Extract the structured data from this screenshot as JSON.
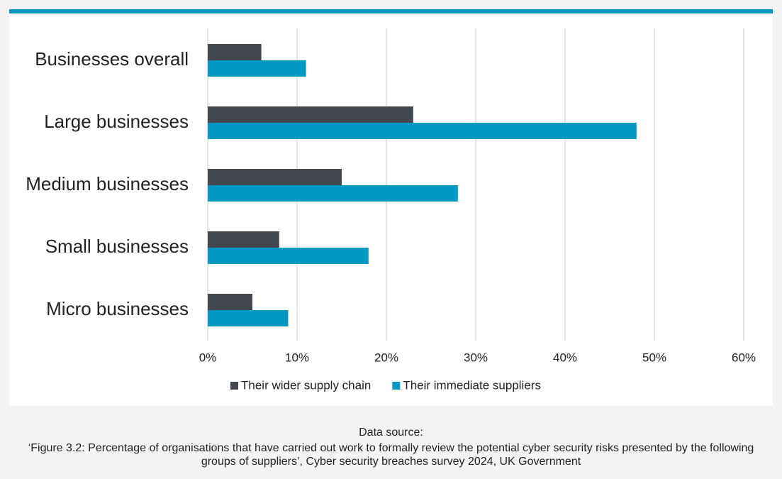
{
  "chart_data": {
    "type": "hbar",
    "categories": [
      "Businesses overall",
      "Large businesses",
      "Medium businesses",
      "Small businesses",
      "Micro businesses"
    ],
    "series": [
      {
        "name": "Their wider supply chain",
        "color": "#44474d",
        "values": [
          6,
          23,
          15,
          8,
          5
        ]
      },
      {
        "name": "Their immediate suppliers",
        "color": "#0099c4",
        "values": [
          11,
          48,
          28,
          18,
          9
        ]
      }
    ],
    "xlim": [
      0,
      60
    ],
    "xticks": [
      {
        "value": 0,
        "label": "0%"
      },
      {
        "value": 10,
        "label": "10%"
      },
      {
        "value": 20,
        "label": "20%"
      },
      {
        "value": 30,
        "label": "30%"
      },
      {
        "value": 40,
        "label": "40%"
      },
      {
        "value": 50,
        "label": "50%"
      },
      {
        "value": 60,
        "label": "60%"
      }
    ],
    "grid": true,
    "legend": "bottom",
    "source_label": "Data source:",
    "source": "‘Figure 3.2: Percentage of organisations that have carried out work to formally review the potential cyber security risks presented by the following groups of suppliers’, Cyber security breaches survey 2024, UK Government"
  }
}
